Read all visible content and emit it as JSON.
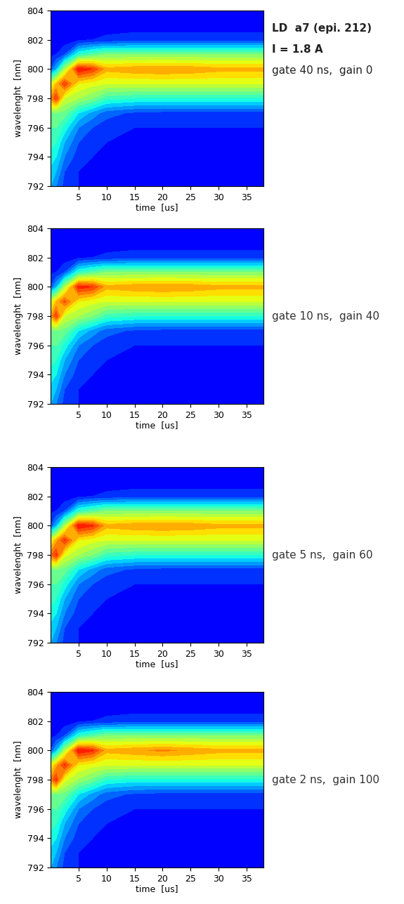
{
  "chart_data": [
    {
      "type": "heatmap",
      "annotations": [
        "LD  a7 (epi. 212)",
        "I = 1.8 A",
        "gate 40 ns,  gain 0"
      ],
      "x_label": "time  [us]",
      "y_label": "wavelenght  [nm]",
      "xlim": [
        0,
        38
      ],
      "ylim": [
        792,
        804
      ],
      "xticks": [
        5,
        10,
        15,
        20,
        25,
        30,
        35
      ],
      "yticks": [
        792,
        794,
        796,
        798,
        800,
        802,
        804
      ],
      "zlim": [
        0,
        1
      ],
      "x": [
        0,
        1,
        2.5,
        5,
        7.5,
        10,
        15,
        20,
        25,
        30,
        38
      ],
      "y": [
        792,
        793,
        794,
        795,
        796,
        797,
        798,
        799,
        800,
        801,
        802,
        803,
        804
      ],
      "cells": [
        [
          0.3,
          0.25,
          0.18,
          0.15,
          0.14,
          0.13,
          0.12,
          0.12,
          0.12,
          0.12,
          0.12
        ],
        [
          0.33,
          0.3,
          0.2,
          0.15,
          0.14,
          0.13,
          0.12,
          0.12,
          0.12,
          0.12,
          0.12
        ],
        [
          0.38,
          0.35,
          0.25,
          0.17,
          0.15,
          0.14,
          0.13,
          0.13,
          0.13,
          0.13,
          0.13
        ],
        [
          0.42,
          0.4,
          0.3,
          0.2,
          0.17,
          0.15,
          0.14,
          0.14,
          0.14,
          0.14,
          0.14
        ],
        [
          0.45,
          0.45,
          0.38,
          0.25,
          0.2,
          0.17,
          0.15,
          0.15,
          0.15,
          0.15,
          0.15
        ],
        [
          0.5,
          0.5,
          0.48,
          0.35,
          0.28,
          0.22,
          0.19,
          0.18,
          0.18,
          0.18,
          0.18
        ],
        [
          0.75,
          0.85,
          0.6,
          0.55,
          0.5,
          0.42,
          0.4,
          0.4,
          0.4,
          0.4,
          0.4
        ],
        [
          0.6,
          0.7,
          0.85,
          0.65,
          0.62,
          0.6,
          0.6,
          0.6,
          0.6,
          0.6,
          0.6
        ],
        [
          0.2,
          0.3,
          0.55,
          0.9,
          0.85,
          0.72,
          0.74,
          0.75,
          0.74,
          0.72,
          0.72
        ],
        [
          0.14,
          0.15,
          0.2,
          0.4,
          0.45,
          0.5,
          0.5,
          0.5,
          0.5,
          0.5,
          0.5
        ],
        [
          0.12,
          0.12,
          0.12,
          0.14,
          0.15,
          0.16,
          0.17,
          0.17,
          0.17,
          0.17,
          0.17
        ],
        [
          0.11,
          0.11,
          0.11,
          0.12,
          0.12,
          0.13,
          0.13,
          0.13,
          0.13,
          0.13,
          0.13
        ],
        [
          0.1,
          0.1,
          0.1,
          0.1,
          0.1,
          0.1,
          0.1,
          0.1,
          0.1,
          0.1,
          0.1
        ]
      ]
    },
    {
      "type": "heatmap",
      "annotations": [
        "gate 10 ns,  gain 40"
      ],
      "x_label": "time  [us]",
      "y_label": "wavelenght  [nm]",
      "xlim": [
        0,
        38
      ],
      "ylim": [
        792,
        804
      ],
      "xticks": [
        5,
        10,
        15,
        20,
        25,
        30,
        35
      ],
      "yticks": [
        792,
        794,
        796,
        798,
        800,
        802,
        804
      ],
      "zlim": [
        0,
        1
      ],
      "x": [
        0,
        1,
        2.5,
        5,
        7.5,
        10,
        15,
        20,
        25,
        30,
        38
      ],
      "y": [
        792,
        793,
        794,
        795,
        796,
        797,
        798,
        799,
        800,
        801,
        802,
        803,
        804
      ],
      "cells": [
        [
          0.3,
          0.25,
          0.18,
          0.15,
          0.14,
          0.13,
          0.12,
          0.12,
          0.12,
          0.12,
          0.12
        ],
        [
          0.33,
          0.3,
          0.2,
          0.15,
          0.14,
          0.13,
          0.12,
          0.12,
          0.12,
          0.12,
          0.12
        ],
        [
          0.38,
          0.35,
          0.25,
          0.17,
          0.15,
          0.14,
          0.13,
          0.13,
          0.13,
          0.13,
          0.13
        ],
        [
          0.42,
          0.4,
          0.3,
          0.2,
          0.17,
          0.15,
          0.14,
          0.14,
          0.14,
          0.14,
          0.14
        ],
        [
          0.45,
          0.45,
          0.38,
          0.25,
          0.2,
          0.17,
          0.15,
          0.15,
          0.15,
          0.15,
          0.15
        ],
        [
          0.5,
          0.5,
          0.48,
          0.35,
          0.28,
          0.22,
          0.19,
          0.18,
          0.18,
          0.18,
          0.18
        ],
        [
          0.72,
          0.85,
          0.6,
          0.55,
          0.5,
          0.42,
          0.4,
          0.4,
          0.4,
          0.4,
          0.4
        ],
        [
          0.6,
          0.7,
          0.82,
          0.65,
          0.62,
          0.6,
          0.6,
          0.6,
          0.6,
          0.6,
          0.6
        ],
        [
          0.2,
          0.3,
          0.55,
          0.88,
          0.85,
          0.72,
          0.74,
          0.75,
          0.74,
          0.72,
          0.72
        ],
        [
          0.14,
          0.15,
          0.2,
          0.4,
          0.45,
          0.5,
          0.5,
          0.5,
          0.5,
          0.5,
          0.5
        ],
        [
          0.12,
          0.12,
          0.12,
          0.14,
          0.15,
          0.16,
          0.17,
          0.17,
          0.17,
          0.17,
          0.17
        ],
        [
          0.11,
          0.11,
          0.11,
          0.12,
          0.12,
          0.13,
          0.13,
          0.13,
          0.13,
          0.13,
          0.13
        ],
        [
          0.1,
          0.1,
          0.1,
          0.1,
          0.1,
          0.1,
          0.1,
          0.1,
          0.1,
          0.1,
          0.1
        ]
      ]
    },
    {
      "type": "heatmap",
      "annotations": [
        "gate 5 ns,  gain 60"
      ],
      "x_label": "time  [us]",
      "y_label": "wavelenght  [nm]",
      "xlim": [
        0,
        38
      ],
      "ylim": [
        792,
        804
      ],
      "xticks": [
        5,
        10,
        15,
        20,
        25,
        30,
        35
      ],
      "yticks": [
        792,
        794,
        796,
        798,
        800,
        802,
        804
      ],
      "zlim": [
        0,
        1
      ],
      "x": [
        0,
        1,
        2.5,
        5,
        7.5,
        10,
        15,
        20,
        25,
        30,
        38
      ],
      "y": [
        792,
        793,
        794,
        795,
        796,
        797,
        798,
        799,
        800,
        801,
        802,
        803,
        804
      ],
      "cells": [
        [
          0.3,
          0.25,
          0.18,
          0.15,
          0.14,
          0.13,
          0.12,
          0.12,
          0.12,
          0.12,
          0.12
        ],
        [
          0.33,
          0.3,
          0.2,
          0.15,
          0.14,
          0.13,
          0.12,
          0.12,
          0.12,
          0.12,
          0.12
        ],
        [
          0.38,
          0.35,
          0.25,
          0.17,
          0.15,
          0.14,
          0.13,
          0.13,
          0.13,
          0.13,
          0.13
        ],
        [
          0.42,
          0.4,
          0.3,
          0.2,
          0.17,
          0.15,
          0.14,
          0.14,
          0.14,
          0.14,
          0.14
        ],
        [
          0.45,
          0.45,
          0.38,
          0.25,
          0.2,
          0.17,
          0.15,
          0.15,
          0.15,
          0.15,
          0.15
        ],
        [
          0.5,
          0.5,
          0.48,
          0.35,
          0.28,
          0.22,
          0.19,
          0.18,
          0.18,
          0.18,
          0.18
        ],
        [
          0.78,
          0.86,
          0.62,
          0.55,
          0.5,
          0.42,
          0.4,
          0.4,
          0.4,
          0.4,
          0.4
        ],
        [
          0.62,
          0.72,
          0.86,
          0.65,
          0.62,
          0.6,
          0.6,
          0.6,
          0.6,
          0.6,
          0.6
        ],
        [
          0.2,
          0.3,
          0.55,
          0.9,
          0.86,
          0.72,
          0.74,
          0.75,
          0.74,
          0.72,
          0.72
        ],
        [
          0.14,
          0.15,
          0.2,
          0.4,
          0.45,
          0.5,
          0.5,
          0.5,
          0.5,
          0.5,
          0.5
        ],
        [
          0.12,
          0.12,
          0.12,
          0.14,
          0.15,
          0.16,
          0.17,
          0.17,
          0.17,
          0.17,
          0.17
        ],
        [
          0.11,
          0.11,
          0.11,
          0.12,
          0.12,
          0.13,
          0.13,
          0.13,
          0.13,
          0.13,
          0.13
        ],
        [
          0.1,
          0.1,
          0.1,
          0.1,
          0.1,
          0.1,
          0.1,
          0.1,
          0.1,
          0.1,
          0.1
        ]
      ]
    },
    {
      "type": "heatmap",
      "annotations": [
        "gate 2 ns,  gain 100"
      ],
      "x_label": "time  [us]",
      "y_label": "wavelenght  [nm]",
      "xlim": [
        0,
        38
      ],
      "ylim": [
        792,
        804
      ],
      "xticks": [
        5,
        10,
        15,
        20,
        25,
        30,
        35
      ],
      "yticks": [
        792,
        794,
        796,
        798,
        800,
        802,
        804
      ],
      "zlim": [
        0,
        1
      ],
      "x": [
        0,
        1,
        2.5,
        5,
        7.5,
        10,
        15,
        20,
        25,
        30,
        38
      ],
      "y": [
        792,
        793,
        794,
        795,
        796,
        797,
        798,
        799,
        800,
        801,
        802,
        803,
        804
      ],
      "cells": [
        [
          0.3,
          0.25,
          0.18,
          0.15,
          0.14,
          0.13,
          0.12,
          0.12,
          0.12,
          0.12,
          0.12
        ],
        [
          0.33,
          0.3,
          0.2,
          0.15,
          0.14,
          0.13,
          0.12,
          0.12,
          0.12,
          0.12,
          0.12
        ],
        [
          0.38,
          0.35,
          0.25,
          0.17,
          0.15,
          0.14,
          0.13,
          0.13,
          0.13,
          0.13,
          0.13
        ],
        [
          0.42,
          0.4,
          0.3,
          0.2,
          0.17,
          0.15,
          0.14,
          0.14,
          0.14,
          0.14,
          0.14
        ],
        [
          0.45,
          0.45,
          0.38,
          0.25,
          0.2,
          0.17,
          0.15,
          0.15,
          0.15,
          0.15,
          0.15
        ],
        [
          0.5,
          0.5,
          0.48,
          0.35,
          0.28,
          0.22,
          0.19,
          0.18,
          0.18,
          0.18,
          0.18
        ],
        [
          0.76,
          0.86,
          0.62,
          0.54,
          0.48,
          0.4,
          0.38,
          0.38,
          0.38,
          0.38,
          0.38
        ],
        [
          0.62,
          0.72,
          0.86,
          0.65,
          0.62,
          0.6,
          0.6,
          0.6,
          0.6,
          0.6,
          0.6
        ],
        [
          0.2,
          0.3,
          0.55,
          0.9,
          0.86,
          0.72,
          0.74,
          0.76,
          0.74,
          0.72,
          0.72
        ],
        [
          0.14,
          0.15,
          0.2,
          0.4,
          0.45,
          0.5,
          0.5,
          0.5,
          0.5,
          0.5,
          0.5
        ],
        [
          0.12,
          0.12,
          0.12,
          0.14,
          0.15,
          0.16,
          0.17,
          0.17,
          0.17,
          0.17,
          0.17
        ],
        [
          0.11,
          0.11,
          0.11,
          0.12,
          0.12,
          0.13,
          0.13,
          0.13,
          0.13,
          0.13,
          0.13
        ],
        [
          0.1,
          0.1,
          0.1,
          0.1,
          0.1,
          0.1,
          0.1,
          0.1,
          0.1,
          0.1,
          0.1
        ]
      ]
    }
  ]
}
